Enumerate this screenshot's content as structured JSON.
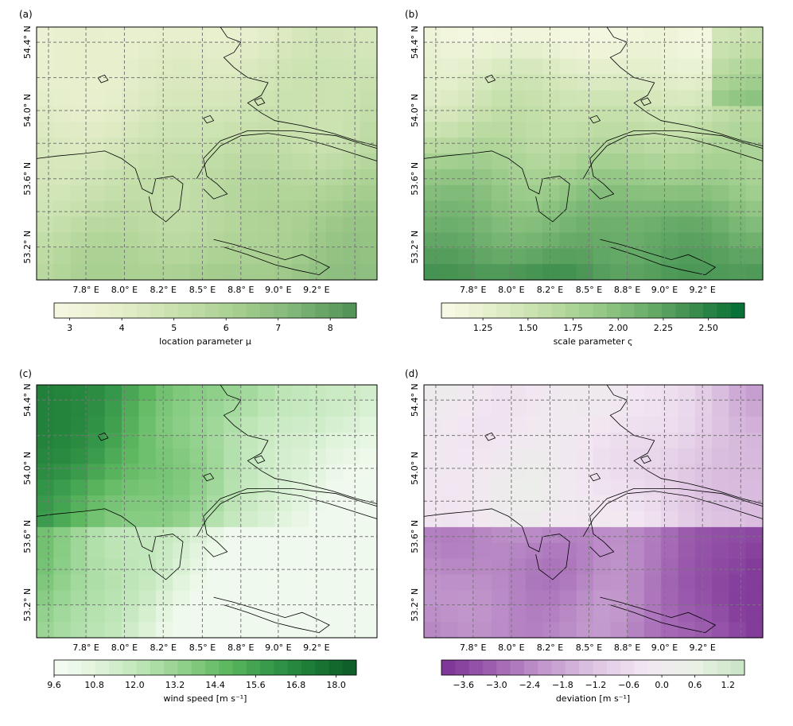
{
  "axes": {
    "lon_labels": [
      "7.8° E",
      "8.0° E",
      "8.2° E",
      "8.5° E",
      "8.8° E",
      "9.0° E",
      "9.2° E"
    ],
    "lat_labels": [
      "54.4° N",
      "54.0° N",
      "53.6° N",
      "53.2° N"
    ]
  },
  "panels": [
    {
      "label": "(a)",
      "colorbar": {
        "title": "location parameter μ",
        "ticks": [
          "3",
          "4",
          "5",
          "6",
          "7",
          "8"
        ],
        "range": [
          2.7,
          8.5
        ],
        "tick_values": [
          3,
          4,
          5,
          6,
          7,
          8
        ],
        "colors": [
          "#f7f7e2",
          "#e7efcd",
          "#c9e1ae",
          "#a7cf90",
          "#7fb577",
          "#4f9055"
        ]
      },
      "field_range": [
        3.2,
        7.6
      ]
    },
    {
      "label": "(b)",
      "colorbar": {
        "title": "scale parameter ς",
        "ticks": [
          "1.25",
          "1.50",
          "1.75",
          "2.00",
          "2.25",
          "2.50"
        ],
        "range": [
          1.02,
          2.7
        ],
        "tick_values": [
          1.25,
          1.5,
          1.75,
          2.0,
          2.25,
          2.5
        ],
        "colors": [
          "#fbfbe8",
          "#e3eecb",
          "#c4dfa9",
          "#9ccc8b",
          "#6fb06d",
          "#3c8c4c",
          "#006d35"
        ]
      },
      "field_range": [
        1.1,
        2.6
      ]
    },
    {
      "label": "(c)",
      "colorbar": {
        "title": "wind speed [m s⁻¹]",
        "ticks": [
          "9.6",
          "10.8",
          "12.0",
          "13.2",
          "14.4",
          "15.6",
          "16.8",
          "18.0"
        ],
        "range": [
          9.6,
          18.6
        ],
        "tick_values": [
          9.6,
          10.8,
          12.0,
          13.2,
          14.4,
          15.6,
          16.8,
          18.0
        ],
        "colors": [
          "#f7fcf5",
          "#e0f3db",
          "#bde5b6",
          "#8fd08a",
          "#5db75f",
          "#36984a",
          "#1b7a35",
          "#0b5a26"
        ]
      },
      "field_range": [
        10.0,
        17.5
      ]
    },
    {
      "label": "(d)",
      "colorbar": {
        "title": "deviation [m s⁻¹]",
        "ticks": [
          "−3.6",
          "−3.0",
          "−2.4",
          "−1.8",
          "−1.2",
          "−0.6",
          "0.0",
          "0.6",
          "1.2"
        ],
        "range": [
          -4.0,
          1.5
        ],
        "tick_values": [
          -3.6,
          -3.0,
          -2.4,
          -1.8,
          -1.2,
          -0.6,
          0.0,
          0.6,
          1.2
        ],
        "colors": [
          "#7b3294",
          "#9e5fb0",
          "#c196cc",
          "#dec4e2",
          "#f2e6f2",
          "#e9f2e6",
          "#c9e4c4"
        ]
      },
      "field_range": [
        -3.8,
        1.0
      ]
    }
  ]
}
